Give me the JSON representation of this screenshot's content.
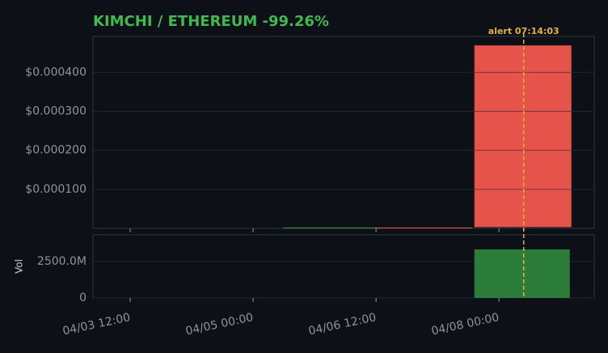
{
  "chart_data": {
    "type": "candlestick",
    "title": "KIMCHI / ETHEREUM  -99.26%",
    "x": [
      "04/05 23:00",
      "04/07 02:00",
      "04/08 07:00"
    ],
    "open": [
      1e-06,
      2e-06,
      0.000469
    ],
    "close": [
      2e-06,
      1e-06,
      3e-06
    ],
    "up_color": "#2ea043",
    "down_color": "#e5534b",
    "volume": [
      0,
      0,
      3330000000
    ],
    "volume_color": "#2d7d3a",
    "volume_label": "Vol",
    "xlim": [
      "04/03 01:06",
      "04/09 03:54"
    ],
    "xticks": [
      "04/03 12:00",
      "04/05 00:00",
      "04/06 12:00",
      "04/08 00:00"
    ],
    "ylim": [
      0,
      0.000492
    ],
    "yticks": [
      {
        "value": 0.0001,
        "label": "$0.000100"
      },
      {
        "value": 0.0002,
        "label": "$0.000200"
      },
      {
        "value": 0.0003,
        "label": "$0.000300"
      },
      {
        "value": 0.0004,
        "label": "$0.000400"
      }
    ],
    "vol_ylim": [
      0,
      4333000000
    ],
    "vol_yticks": [
      0,
      {
        "value": 2500000000,
        "label": "2500.0M"
      }
    ],
    "grid": true,
    "alert": {
      "x": "04/08 07:14",
      "label": "alert 07:14:03",
      "color": "#e3b341"
    }
  }
}
